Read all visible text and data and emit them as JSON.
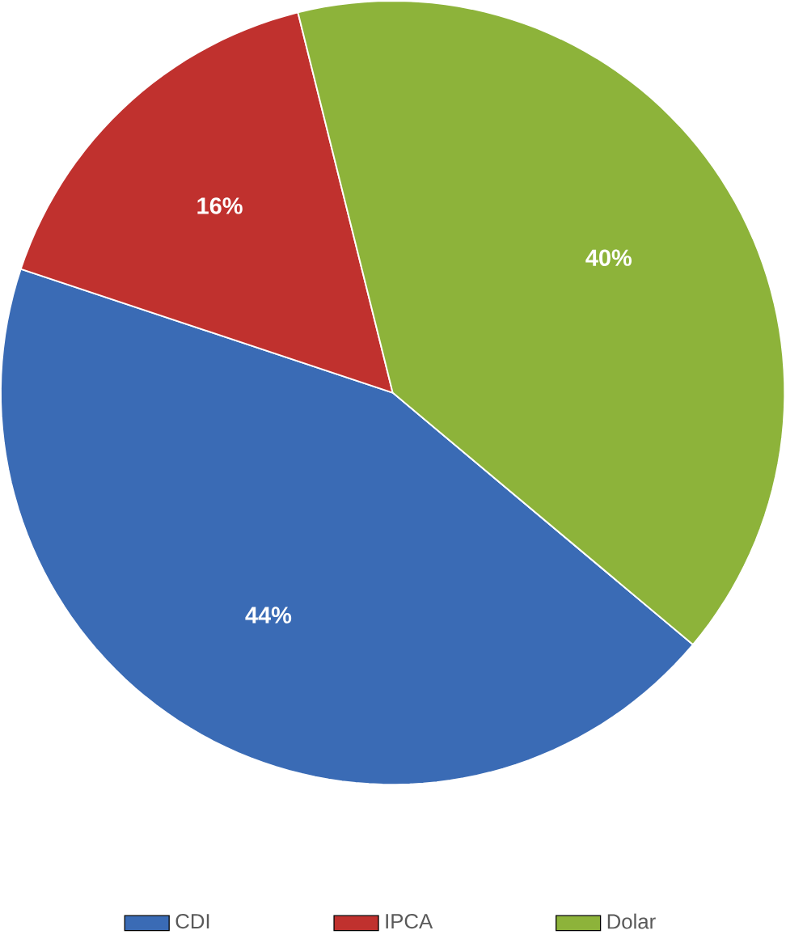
{
  "chart_data": {
    "type": "pie",
    "categories": [
      "CDI",
      "IPCA",
      "Dolar"
    ],
    "values": [
      44,
      16,
      40
    ],
    "colors": [
      "#3a6bb5",
      "#c0312e",
      "#8db33a"
    ],
    "value_labels": [
      "44%",
      "16%",
      "40%"
    ],
    "legend": "bottom"
  }
}
